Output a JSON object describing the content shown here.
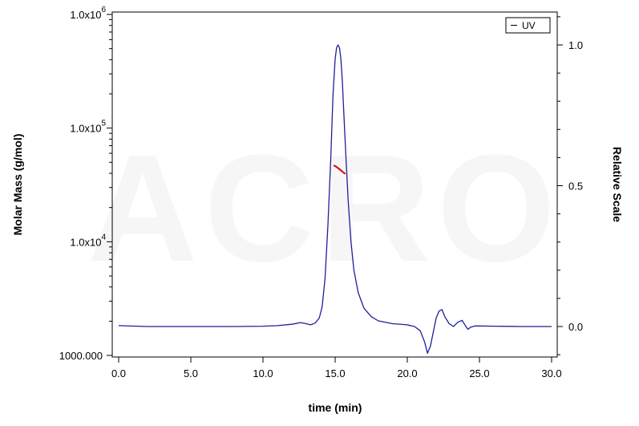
{
  "chart_data": {
    "type": "line",
    "xlabel": "time (min)",
    "ylabel_left": "Molar Mass (g/mol)",
    "ylabel_right": "Relative Scale",
    "xlim": [
      0,
      30
    ],
    "ylim_left": [
      1000,
      1000000
    ],
    "ylim_right": [
      -0.1,
      1.1
    ],
    "left_scale": "log",
    "grid": false,
    "x_ticks": [
      "0.0",
      "5.0",
      "10.0",
      "15.0",
      "20.0",
      "25.0",
      "30.0"
    ],
    "x_tick_values": [
      0,
      5,
      10,
      15,
      20,
      25,
      30
    ],
    "y_left_ticks": [
      {
        "value": 1000,
        "mantissa": "1000.000",
        "exp": ""
      },
      {
        "value": 10000,
        "mantissa": "1.0x10",
        "exp": "4"
      },
      {
        "value": 100000,
        "mantissa": "1.0x10",
        "exp": "5"
      },
      {
        "value": 1000000,
        "mantissa": "1.0x10",
        "exp": "6"
      }
    ],
    "y_right_ticks": [
      "0.0",
      "0.5",
      "1.0"
    ],
    "y_right_tick_values": [
      0.0,
      0.5,
      1.0
    ],
    "legend": {
      "position": "top-right",
      "entries": [
        "UV"
      ]
    },
    "watermark": "ACRO",
    "series": [
      {
        "name": "UV",
        "axis": "right",
        "color": "#1f1f9a",
        "x": [
          0.0,
          2.0,
          5.0,
          8.0,
          10.0,
          11.0,
          12.0,
          12.6,
          13.0,
          13.3,
          13.6,
          13.9,
          14.1,
          14.3,
          14.5,
          14.7,
          14.85,
          15.0,
          15.1,
          15.2,
          15.3,
          15.4,
          15.5,
          15.6,
          15.75,
          15.9,
          16.1,
          16.3,
          16.6,
          17.0,
          17.5,
          18.0,
          19.0,
          20.0,
          20.5,
          20.9,
          21.2,
          21.4,
          21.6,
          21.8,
          22.0,
          22.2,
          22.4,
          22.6,
          22.9,
          23.2,
          23.5,
          23.8,
          24.0,
          24.2,
          24.4,
          24.7,
          25.0,
          26.0,
          28.0,
          30.0
        ],
        "y": [
          0.003,
          0.0,
          0.0,
          0.0,
          0.001,
          0.003,
          0.008,
          0.014,
          0.01,
          0.006,
          0.012,
          0.03,
          0.07,
          0.17,
          0.36,
          0.6,
          0.82,
          0.95,
          0.99,
          1.0,
          0.99,
          0.95,
          0.87,
          0.76,
          0.6,
          0.45,
          0.3,
          0.2,
          0.12,
          0.065,
          0.035,
          0.02,
          0.01,
          0.006,
          0.0,
          -0.015,
          -0.055,
          -0.095,
          -0.07,
          -0.02,
          0.03,
          0.055,
          0.06,
          0.035,
          0.01,
          0.0,
          0.015,
          0.022,
          0.005,
          -0.01,
          -0.002,
          0.002,
          0.002,
          0.001,
          0.0,
          0.0
        ]
      },
      {
        "name": "Molar Mass",
        "axis": "left",
        "color": "#d21414",
        "x": [
          14.9,
          15.1,
          15.3,
          15.5,
          15.7
        ],
        "y": [
          47000,
          45500,
          43500,
          41500,
          39500
        ]
      }
    ]
  }
}
